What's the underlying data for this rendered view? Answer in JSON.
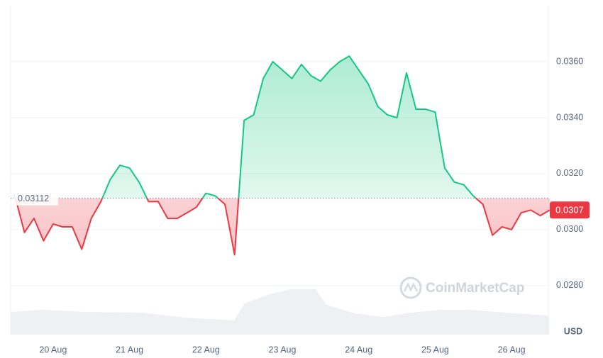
{
  "chart_data": {
    "type": "line",
    "categories": [
      null,
      null,
      null,
      null,
      "20 Aug",
      null,
      null,
      null,
      null,
      null,
      null,
      null,
      "21 Aug",
      null,
      null,
      null,
      null,
      null,
      null,
      null,
      "22 Aug",
      null,
      null,
      null,
      null,
      null,
      null,
      null,
      "23 Aug",
      null,
      null,
      null,
      null,
      null,
      null,
      null,
      "24 Aug",
      null,
      null,
      null,
      null,
      null,
      null,
      null,
      "25 Aug",
      null,
      null,
      null,
      null,
      null,
      null,
      null,
      "26 Aug",
      null,
      null,
      null,
      null
    ],
    "values": [
      0.0312,
      0.0299,
      0.0304,
      0.0296,
      0.0302,
      0.0301,
      0.0301,
      0.0293,
      0.0304,
      0.031,
      0.0318,
      0.0323,
      0.0322,
      0.0317,
      0.031,
      0.031,
      0.0304,
      0.0304,
      0.0306,
      0.0308,
      0.0313,
      0.0312,
      0.0309,
      0.0291,
      0.0339,
      0.0341,
      0.0354,
      0.036,
      0.0357,
      0.0354,
      0.0359,
      0.0355,
      0.0353,
      0.0357,
      0.036,
      0.0362,
      0.0357,
      0.0352,
      0.0344,
      0.0341,
      0.034,
      0.0356,
      0.0343,
      0.0343,
      0.0342,
      0.0322,
      0.0317,
      0.0316,
      0.0312,
      0.0309,
      0.0298,
      0.0301,
      0.03,
      0.0306,
      0.0307,
      0.0305,
      0.0307
    ],
    "up_color": "#16c784",
    "down_color": "#ea3943",
    "reference_value": 0.03112,
    "last_price": 0.0307,
    "ylim": [
      0.02625,
      0.038
    ],
    "yticks": [
      {
        "value": 0.028,
        "label": "0.0280"
      },
      {
        "value": 0.03,
        "label": "0.0300"
      },
      {
        "value": 0.032,
        "label": "0.0320"
      },
      {
        "value": 0.034,
        "label": "0.0340"
      },
      {
        "value": 0.036,
        "label": "0.0360"
      }
    ],
    "grid": true,
    "currency": "USD",
    "watermark": "CoinMarketCap"
  }
}
